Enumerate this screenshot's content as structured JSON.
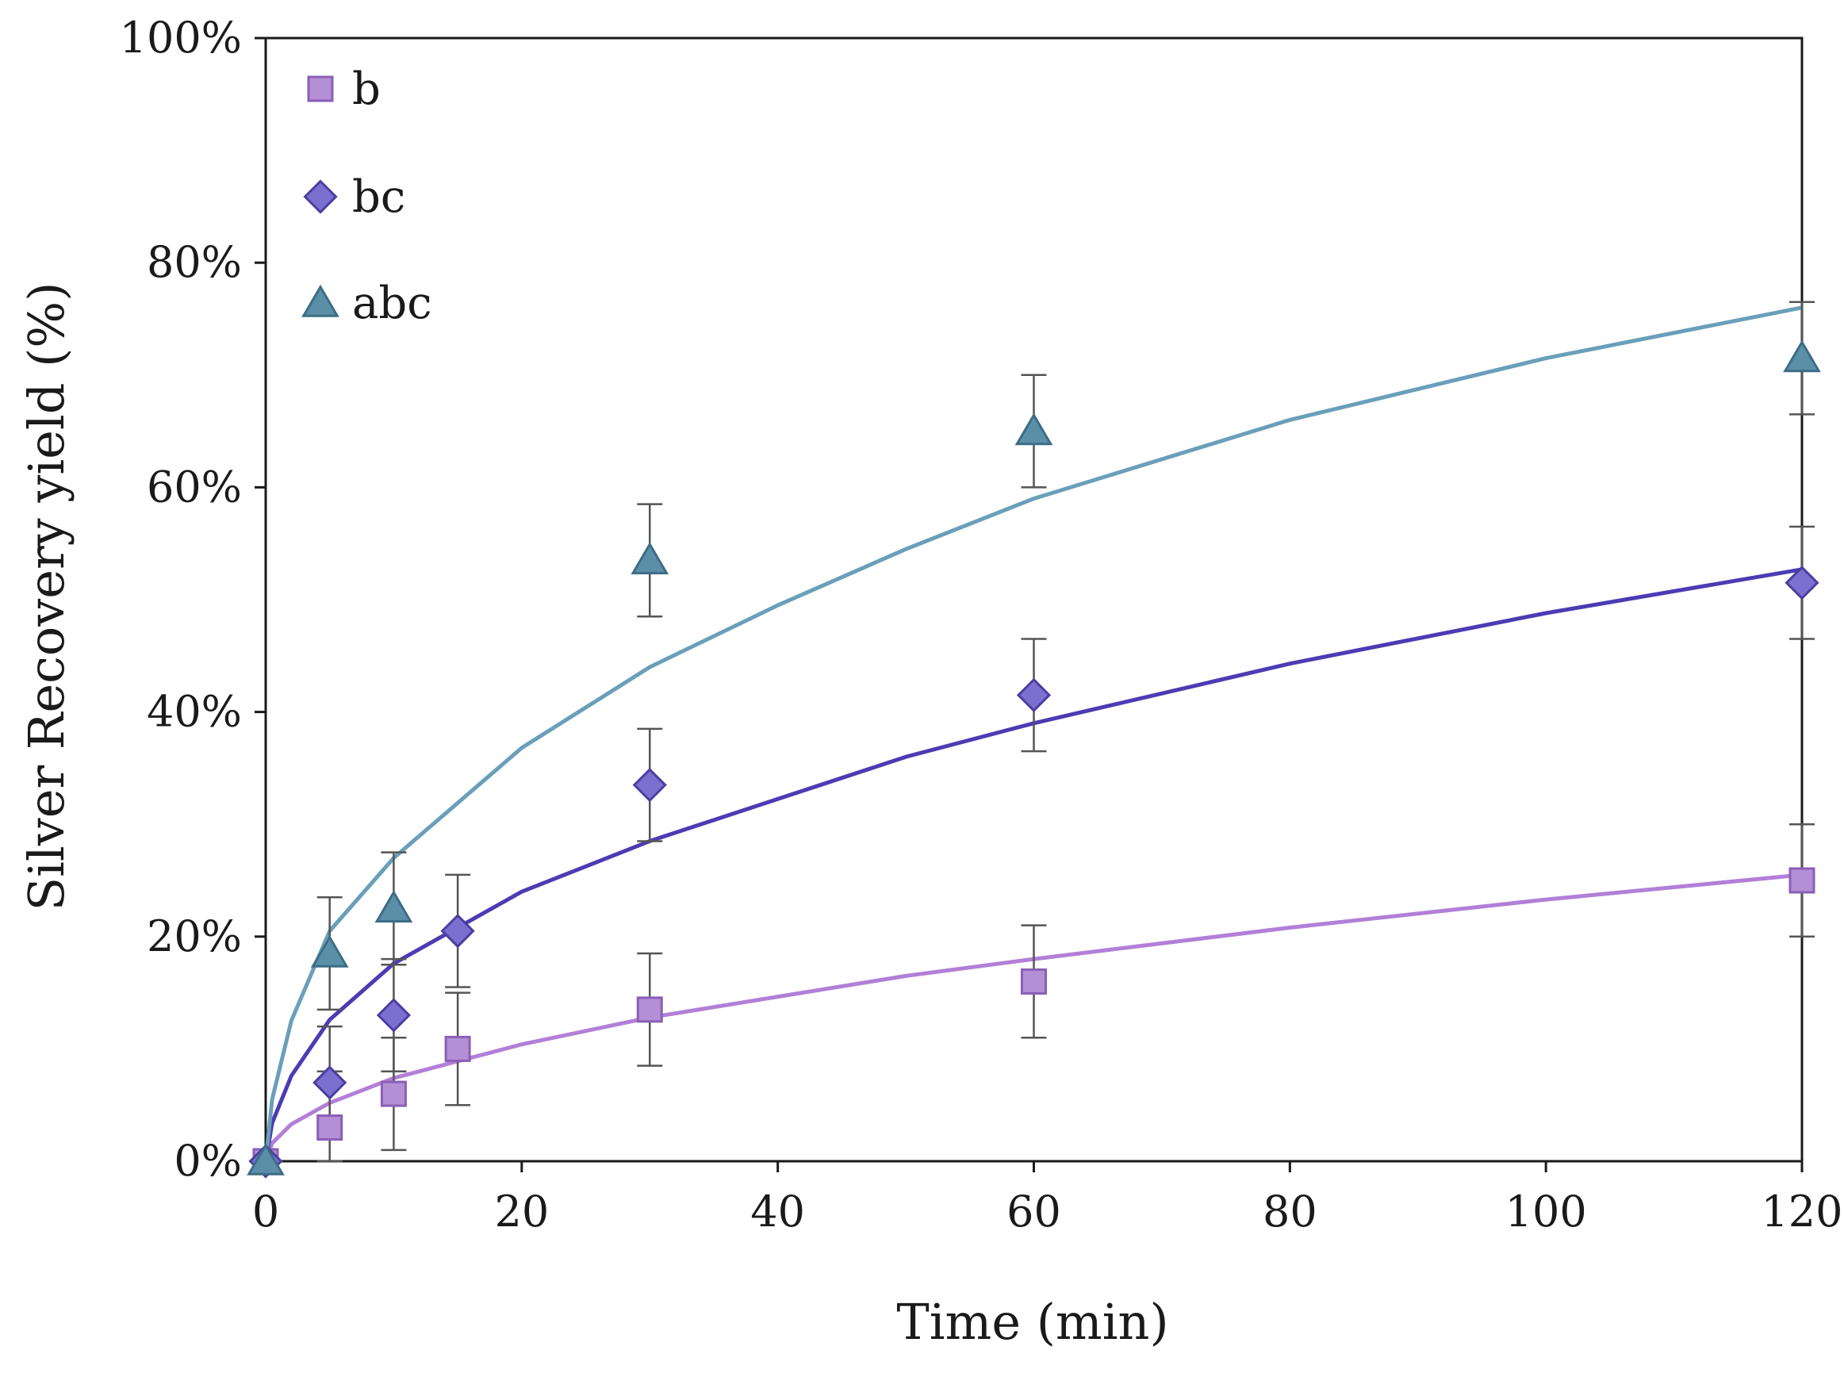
{
  "chart_data": {
    "type": "scatter",
    "title": "",
    "xlabel": "Time (min)",
    "ylabel": "Silver Recovery yield (%)",
    "xlim": [
      0,
      120
    ],
    "ylim": [
      0,
      100
    ],
    "x_ticks": [
      0,
      20,
      40,
      60,
      80,
      100,
      120
    ],
    "x_tick_labels": [
      "0",
      "20",
      "40",
      "60",
      "80",
      "100",
      "120"
    ],
    "y_ticks": [
      0,
      20,
      40,
      60,
      80,
      100
    ],
    "y_tick_labels": [
      "0%",
      "20%",
      "40%",
      "60%",
      "80%",
      "100%"
    ],
    "grid": false,
    "legend_position": "top-left",
    "series": [
      {
        "name": "b",
        "marker": "square",
        "color": "#b58fd6",
        "edge_color": "#8a5fb6",
        "line_color": "#b27fd8",
        "x": [
          0,
          5,
          10,
          15,
          30,
          60,
          120
        ],
        "y": [
          0,
          3,
          6,
          10,
          13.5,
          16,
          25
        ],
        "error": [
          0,
          5,
          5,
          5,
          5,
          5,
          5
        ],
        "fit_x": [
          0,
          0.5,
          2,
          5,
          10,
          20,
          30,
          50,
          60,
          80,
          100,
          120
        ],
        "fit_y": [
          0,
          1.6,
          3.3,
          5.2,
          7.4,
          10.4,
          12.8,
          16.5,
          18.0,
          20.8,
          23.3,
          25.5
        ]
      },
      {
        "name": "bc",
        "marker": "diamond",
        "color": "#7b6fd0",
        "edge_color": "#4a3fa0",
        "line_color": "#4b3cb4",
        "x": [
          0,
          5,
          10,
          15,
          30,
          60,
          120
        ],
        "y": [
          0,
          7,
          13,
          20.5,
          33.5,
          41.5,
          51.5
        ],
        "error": [
          0,
          5,
          5,
          5,
          5,
          5,
          5
        ],
        "fit_x": [
          0,
          0.5,
          2,
          5,
          10,
          20,
          30,
          50,
          60,
          80,
          100,
          120
        ],
        "fit_y": [
          0,
          3.4,
          7.6,
          12.6,
          17.6,
          24.0,
          28.5,
          36.0,
          39.0,
          44.3,
          48.8,
          52.7
        ]
      },
      {
        "name": "abc",
        "marker": "triangle",
        "color": "#5b8fa8",
        "edge_color": "#3d6d86",
        "line_color": "#6a9fba",
        "x": [
          0,
          5,
          10,
          15,
          30,
          60,
          120
        ],
        "y": [
          0,
          18.5,
          22.5,
          null,
          53.5,
          65,
          71.5
        ],
        "error": [
          0,
          5,
          5,
          5,
          5,
          5,
          5
        ],
        "fit_x": [
          0,
          0.5,
          2,
          5,
          10,
          20,
          30,
          40,
          50,
          60,
          80,
          100,
          120
        ],
        "fit_y": [
          0,
          5.5,
          12.5,
          20.5,
          27.0,
          36.8,
          44.0,
          49.5,
          54.5,
          59.0,
          66.0,
          71.5,
          76.0
        ]
      }
    ]
  }
}
